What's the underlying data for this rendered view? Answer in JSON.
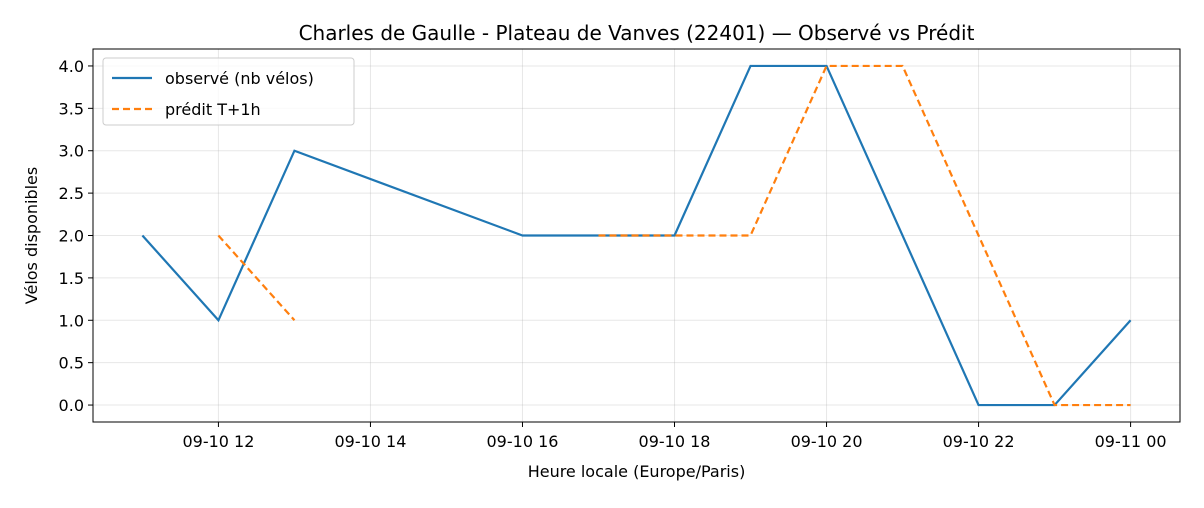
{
  "chart_data": {
    "type": "line",
    "title": "Charles de Gaulle - Plateau de Vanves (22401) — Observé vs Prédit",
    "xlabel": "Heure locale (Europe/Paris)",
    "ylabel": "Vélos disponibles",
    "x_ticks": [
      "09-10 12",
      "09-10 14",
      "09-10 16",
      "09-10 18",
      "09-10 20",
      "09-10 22",
      "09-11 00"
    ],
    "x_tick_times": [
      "2024-09-10T12:00",
      "2024-09-10T14:00",
      "2024-09-10T16:00",
      "2024-09-10T18:00",
      "2024-09-10T20:00",
      "2024-09-10T22:00",
      "2024-09-11T00:00"
    ],
    "xlim": [
      "2024-09-10T10:21",
      "2024-09-11T00:39"
    ],
    "y_ticks": [
      "0.0",
      "0.5",
      "1.0",
      "1.5",
      "2.0",
      "2.5",
      "3.0",
      "3.5",
      "4.0"
    ],
    "ylim": [
      -0.2,
      4.2
    ],
    "grid": true,
    "legend_position": "top-left",
    "series": [
      {
        "name": "observé (nb vélos)",
        "color": "#1f77b4",
        "style": "solid",
        "points": [
          {
            "x": "2024-09-10T11:00",
            "y": 2
          },
          {
            "x": "2024-09-10T12:00",
            "y": 1
          },
          {
            "x": "2024-09-10T13:00",
            "y": 3
          },
          {
            "x": "2024-09-10T16:00",
            "y": 2
          },
          {
            "x": "2024-09-10T17:00",
            "y": 2
          },
          {
            "x": "2024-09-10T18:00",
            "y": 2
          },
          {
            "x": "2024-09-10T19:00",
            "y": 4
          },
          {
            "x": "2024-09-10T20:00",
            "y": 4
          },
          {
            "x": "2024-09-10T22:00",
            "y": 0
          },
          {
            "x": "2024-09-10T23:00",
            "y": 0
          },
          {
            "x": "2024-09-11T00:00",
            "y": 1
          }
        ]
      },
      {
        "name": "prédit T+1h",
        "color": "#ff7f0e",
        "style": "dashed",
        "segments": [
          [
            {
              "x": "2024-09-10T12:00",
              "y": 2
            },
            {
              "x": "2024-09-10T13:00",
              "y": 1
            }
          ],
          [
            {
              "x": "2024-09-10T17:00",
              "y": 2
            },
            {
              "x": "2024-09-10T18:00",
              "y": 2
            },
            {
              "x": "2024-09-10T19:00",
              "y": 2
            },
            {
              "x": "2024-09-10T20:00",
              "y": 4
            },
            {
              "x": "2024-09-10T21:00",
              "y": 4
            },
            {
              "x": "2024-09-10T22:00",
              "y": 2
            },
            {
              "x": "2024-09-10T23:00",
              "y": 0
            },
            {
              "x": "2024-09-11T00:00",
              "y": 0
            }
          ]
        ]
      }
    ]
  }
}
